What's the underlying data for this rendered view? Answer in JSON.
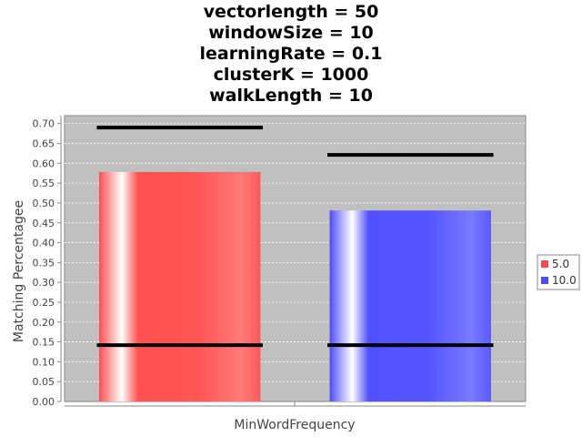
{
  "title_lines": [
    "vectorlength = 50",
    "windowSize = 10",
    "learningRate = 0.1",
    "clusterK = 1000",
    "walkLength = 10"
  ],
  "colors": {
    "plot_background": "#c0c0c0",
    "gridline": "#ffffff",
    "series_5": "#ff4d4d",
    "series_10": "#4d4dff",
    "error_bar": "#000000"
  },
  "chart_data": {
    "type": "bar",
    "title": "vectorlength = 50\nwindowSize = 10\nlearningRate = 0.1\nclusterK = 1000\nwalkLength = 10",
    "xlabel": "MinWordFrequency",
    "ylabel": "Matching Percentagee",
    "ylim": [
      0,
      0.72
    ],
    "yticks": [
      "0.00",
      "0.05",
      "0.10",
      "0.15",
      "0.20",
      "0.25",
      "0.30",
      "0.35",
      "0.40",
      "0.45",
      "0.50",
      "0.55",
      "0.60",
      "0.65",
      "0.70"
    ],
    "grid": true,
    "legend_position": "right",
    "series": [
      {
        "name": "5.0",
        "value": 0.578,
        "error_low": 0.142,
        "error_high": 0.69,
        "color": "#ff4d4d"
      },
      {
        "name": "10.0",
        "value": 0.481,
        "error_low": 0.142,
        "error_high": 0.621,
        "color": "#4d4dff"
      }
    ]
  }
}
